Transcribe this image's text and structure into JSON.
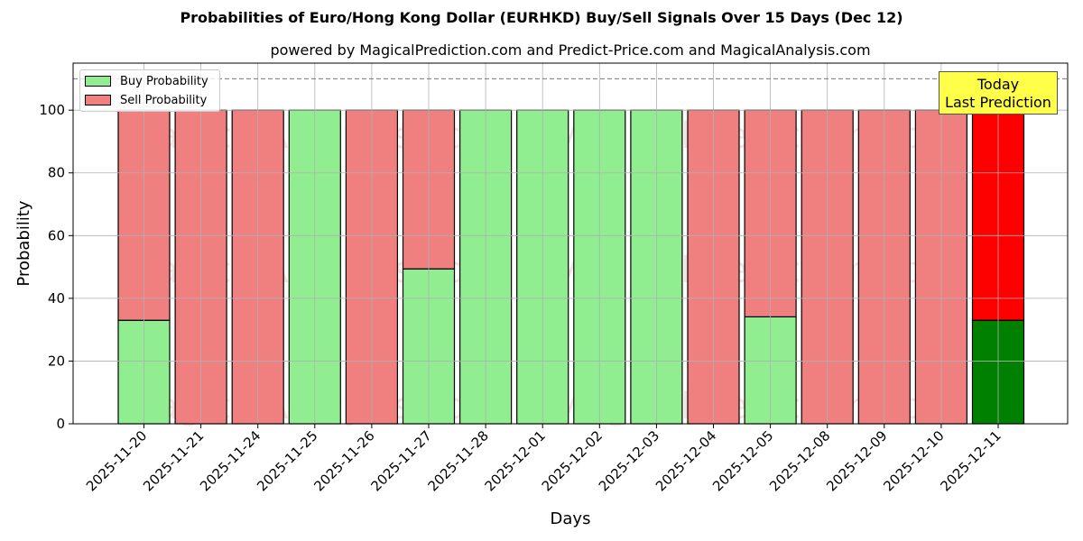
{
  "title": "Probabilities of Euro/Hong Kong Dollar (EURHKD) Buy/Sell Signals Over 15 Days (Dec 12)",
  "subtitle": "powered by MagicalPrediction.com and Predict-Price.com and MagicalAnalysis.com",
  "legend": {
    "buy_label": "Buy Probability",
    "sell_label": "Sell Probability"
  },
  "annotation": {
    "line1": "Today",
    "line2": "Last Prediction"
  },
  "watermarks": [
    "MagicalAnalysis.com",
    "MagicalPrediction.com"
  ],
  "colors": {
    "buy": "#90ee90",
    "sell": "#f08080",
    "today_buy": "#008000",
    "today_sell": "#ff0000",
    "annotation_bg": "#ffff4a"
  },
  "chart_data": {
    "type": "bar",
    "stacked": true,
    "title": "Probabilities of Euro/Hong Kong Dollar (EURHKD) Buy/Sell Signals Over 15 Days (Dec 12)",
    "subtitle": "powered by MagicalPrediction.com and Predict-Price.com and MagicalAnalysis.com",
    "xlabel": "Days",
    "ylabel": "Probability",
    "ylim": [
      0,
      115
    ],
    "yticks": [
      0,
      20,
      40,
      60,
      80,
      100
    ],
    "grid": true,
    "legend_position": "upper left",
    "reference_line": 110,
    "categories": [
      "2025-11-20",
      "2025-11-21",
      "2025-11-24",
      "2025-11-25",
      "2025-11-26",
      "2025-11-27",
      "2025-11-28",
      "2025-12-01",
      "2025-12-02",
      "2025-12-03",
      "2025-12-04",
      "2025-12-05",
      "2025-12-08",
      "2025-12-09",
      "2025-12-10",
      "2025-12-11"
    ],
    "series": [
      {
        "name": "Buy Probability",
        "values": [
          33,
          0,
          0,
          100,
          0,
          49.4,
          100,
          100,
          100,
          100,
          0,
          34.1,
          0,
          0,
          0,
          33
        ]
      },
      {
        "name": "Sell Probability",
        "values": [
          67,
          100,
          100,
          0,
          100,
          50.6,
          0,
          0,
          0,
          0,
          100,
          65.9,
          100,
          100,
          100,
          67
        ]
      }
    ],
    "annotations": [
      {
        "text": "Today\nLast Prediction",
        "x": "2025-12-11"
      }
    ]
  }
}
